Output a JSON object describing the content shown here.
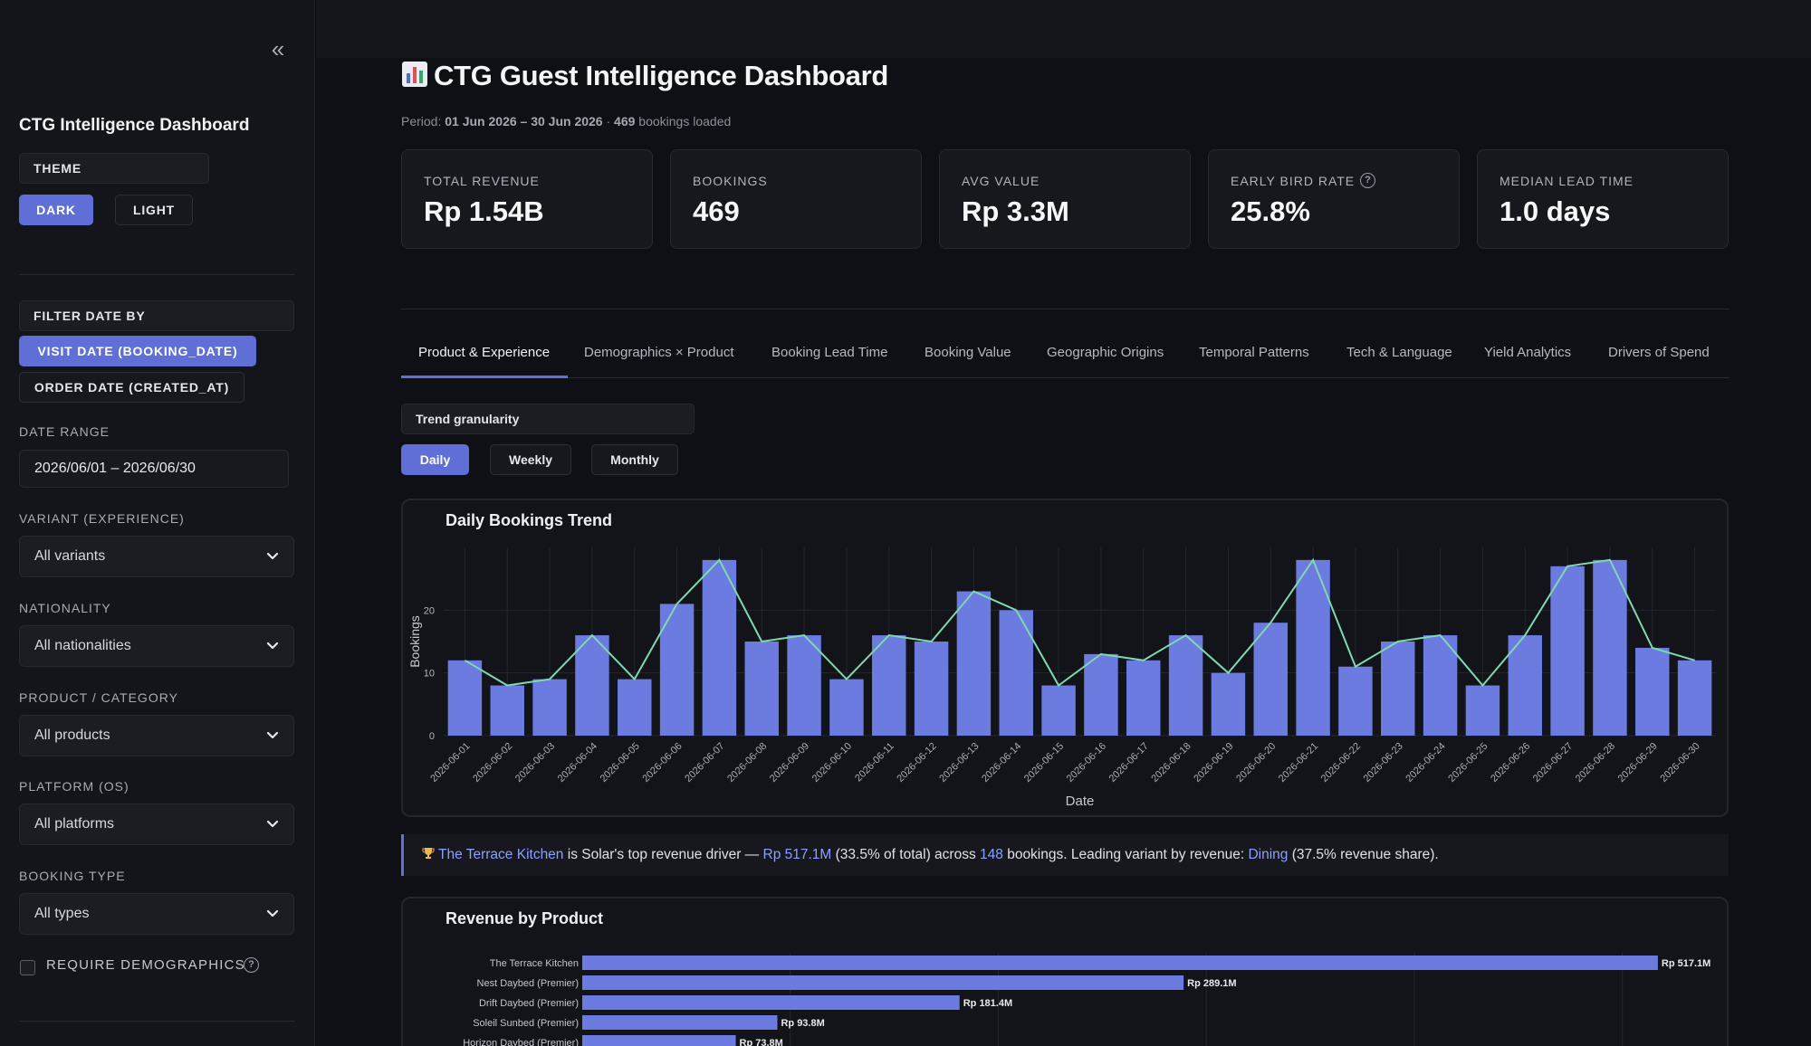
{
  "sidebar": {
    "collapse_glyph": "«",
    "title": "CTG Intelligence Dashboard",
    "theme": {
      "label": "THEME",
      "dark": "DARK",
      "light": "LIGHT",
      "selected": "DARK"
    },
    "filter_date_by": {
      "label": "FILTER DATE BY",
      "visit": "VISIT DATE (BOOKING_DATE)",
      "order": "ORDER DATE (CREATED_AT)",
      "selected": "visit"
    },
    "date_range": {
      "label": "DATE RANGE",
      "value": "2026/06/01 – 2026/06/30"
    },
    "variant": {
      "label": "VARIANT (EXPERIENCE)",
      "value": "All variants"
    },
    "nationality": {
      "label": "NATIONALITY",
      "value": "All nationalities"
    },
    "product": {
      "label": "PRODUCT / CATEGORY",
      "value": "All products"
    },
    "platform": {
      "label": "PLATFORM (OS)",
      "value": "All platforms"
    },
    "booking_type": {
      "label": "BOOKING TYPE",
      "value": "All types"
    },
    "require_demographics": {
      "label": "REQUIRE DEMOGRAPHICS",
      "checked": false
    }
  },
  "header": {
    "title": "CTG Guest Intelligence Dashboard",
    "period_prefix": "Period:",
    "period_range": "01 Jun 2026 – 30 Jun 2026",
    "period_sep": "·",
    "bookings_count": "469",
    "bookings_suffix": "bookings loaded"
  },
  "kpis": [
    {
      "label": "TOTAL REVENUE",
      "value": "Rp 1.54B"
    },
    {
      "label": "BOOKINGS",
      "value": "469"
    },
    {
      "label": "AVG VALUE",
      "value": "Rp 3.3M"
    },
    {
      "label": "EARLY BIRD RATE",
      "value": "25.8%"
    },
    {
      "label": "MEDIAN LEAD TIME",
      "value": "1.0 days"
    }
  ],
  "tabs": [
    {
      "label": "Product & Experience"
    },
    {
      "label": "Demographics × Product"
    },
    {
      "label": "Booking Lead Time"
    },
    {
      "label": "Booking Value"
    },
    {
      "label": "Geographic Origins"
    },
    {
      "label": "Temporal Patterns"
    },
    {
      "label": "Tech & Language"
    },
    {
      "label": "Yield Analytics"
    },
    {
      "label": "Drivers of Spend"
    }
  ],
  "active_tab": "Product & Experience",
  "granularity": {
    "label": "Trend granularity",
    "daily": "Daily",
    "weekly": "Weekly",
    "monthly": "Monthly",
    "selected": "Daily"
  },
  "insight": {
    "product": "The Terrace Kitchen",
    "t1": " is Solar's top revenue driver — ",
    "revenue": "Rp 517.1M",
    "t2": " (33.5% of total) across ",
    "bookings": "148",
    "t3": " bookings. Leading variant by revenue: ",
    "variant": "Dining",
    "t4": " (37.5% revenue share)."
  },
  "colors": {
    "accent": "#6271d8",
    "bar": "#6b7be0",
    "line": "#7fd8b0",
    "highlight": "#8ba0ff"
  },
  "chart_data": [
    {
      "type": "bar",
      "title": "Daily Bookings Trend",
      "xlabel": "Date",
      "ylabel": "Bookings",
      "ylim": [
        0,
        30
      ],
      "yticks": [
        0,
        10,
        20
      ],
      "grid": true,
      "overlay": "line",
      "categories": [
        "2026-06-01",
        "2026-06-02",
        "2026-06-03",
        "2026-06-04",
        "2026-06-05",
        "2026-06-06",
        "2026-06-07",
        "2026-06-08",
        "2026-06-09",
        "2026-06-10",
        "2026-06-11",
        "2026-06-12",
        "2026-06-13",
        "2026-06-14",
        "2026-06-15",
        "2026-06-16",
        "2026-06-17",
        "2026-06-18",
        "2026-06-19",
        "2026-06-20",
        "2026-06-21",
        "2026-06-22",
        "2026-06-23",
        "2026-06-24",
        "2026-06-25",
        "2026-06-26",
        "2026-06-27",
        "2026-06-28",
        "2026-06-29",
        "2026-06-30"
      ],
      "values": [
        12,
        8,
        9,
        16,
        9,
        21,
        28,
        15,
        16,
        9,
        16,
        15,
        23,
        20,
        8,
        13,
        12,
        16,
        10,
        18,
        28,
        11,
        15,
        16,
        8,
        16,
        27,
        28,
        14,
        12
      ]
    },
    {
      "type": "bar",
      "orientation": "horizontal",
      "title": "Revenue by Product",
      "categories": [
        "The Terrace Kitchen",
        "Nest Daybed (Premier)",
        "Drift Daybed (Premier)",
        "Soleil Sunbed (Premier)",
        "Horizon Daybed (Premier)"
      ],
      "values": [
        517.1,
        289.1,
        181.4,
        93.8,
        73.8
      ],
      "value_labels": [
        "Rp 517.1M",
        "Rp 289.1M",
        "Rp 181.4M",
        "Rp 93.8M",
        "Rp 73.8M"
      ],
      "unit": "Rp M",
      "xlim": [
        0,
        545
      ]
    }
  ]
}
